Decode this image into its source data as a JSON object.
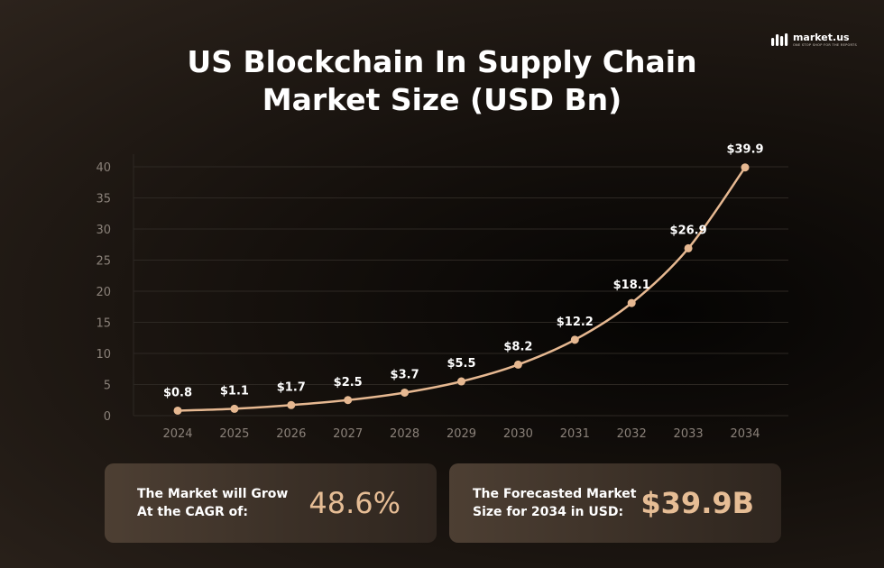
{
  "brand": {
    "name": "market.us",
    "tagline": "ONE STOP SHOP FOR THE REPORTS"
  },
  "title": {
    "line1": "US Blockchain In Supply Chain",
    "line2": "Market Size (USD Bn)"
  },
  "chart_data": {
    "type": "line",
    "title": "US Blockchain In Supply Chain Market Size (USD Bn)",
    "x": [
      "2024",
      "2025",
      "2026",
      "2027",
      "2028",
      "2029",
      "2030",
      "2031",
      "2032",
      "2033",
      "2034"
    ],
    "series": [
      {
        "values": [
          0.8,
          1.1,
          1.7,
          2.5,
          3.7,
          5.5,
          8.2,
          12.2,
          18.1,
          26.9,
          39.9
        ],
        "labels": [
          "$0.8",
          "$1.1",
          "$1.7",
          "$2.5",
          "$3.7",
          "$5.5",
          "$8.2",
          "$12.2",
          "$18.1",
          "$26.9",
          "$39.9"
        ]
      }
    ],
    "ylim": [
      0,
      40
    ],
    "yticks": [
      "0",
      "5",
      "10",
      "15",
      "20",
      "25",
      "30",
      "35",
      "40"
    ],
    "grid": true,
    "line_color": "#e6b891",
    "grid_color": "#2d2823"
  },
  "cards": {
    "cagr": {
      "label_line1": "The Market will Grow",
      "label_line2": "At the CAGR of:",
      "value": "48.6%"
    },
    "forecast": {
      "label_line1": "The Forecasted Market",
      "label_line2": "Size for 2034 in USD:",
      "value": "$39.9B"
    }
  }
}
